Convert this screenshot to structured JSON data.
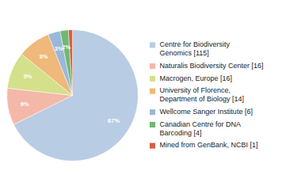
{
  "chart_data": {
    "type": "pie",
    "categories": [
      "Centre for Biodiversity\nGenomics [115]",
      "Naturalis Biodiversity Center [16]",
      "Macrogen, Europe [16]",
      "University of Florence,\nDepartment of Biology [14]",
      "Wellcome Sanger Institute [6]",
      "Canadian Centre for DNA\nBarcoding [4]",
      "Mined from GenBank, NCBI [1]"
    ],
    "values": [
      67,
      9,
      9,
      8,
      3,
      2,
      1
    ],
    "value_labels": [
      "67%",
      "9%",
      "9%",
      "8%",
      "3%",
      "2%",
      null
    ],
    "colors": [
      "#b8cce4",
      "#f4b8a8",
      "#d4e08a",
      "#f0b87a",
      "#9ab8d8",
      "#70b870",
      "#d46040"
    ],
    "legend": "right"
  }
}
